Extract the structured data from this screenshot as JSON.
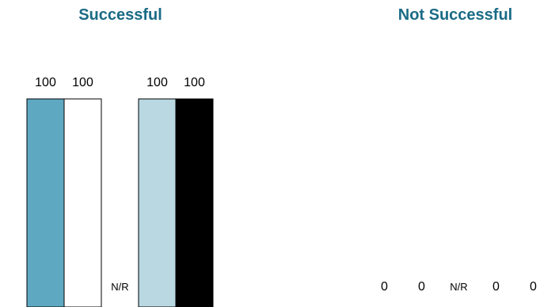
{
  "chart_data": {
    "type": "bar",
    "groups": [
      {
        "title": "Successful",
        "values": [
          100,
          100,
          null,
          100,
          100
        ],
        "labels": [
          "100",
          "100",
          "N/R",
          "100",
          "100"
        ]
      },
      {
        "title": "Not Successful",
        "values": [
          0,
          0,
          null,
          0,
          0
        ],
        "labels": [
          "0",
          "0",
          "N/R",
          "0",
          "0"
        ]
      }
    ],
    "series_colors": [
      "#5ea8c2",
      "#ffffff",
      "#ffffff",
      "#b9d8e2",
      "#000000"
    ],
    "ylim": [
      0,
      100
    ],
    "legend": "none",
    "grid": false
  }
}
